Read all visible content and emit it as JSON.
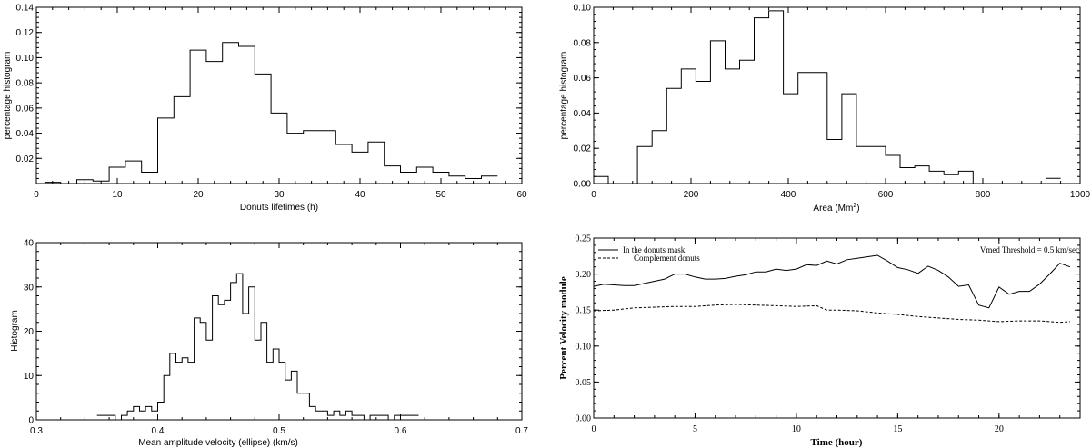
{
  "chart_data": [
    {
      "id": "lifetimes",
      "type": "histogram",
      "title": "",
      "xlabel": "Donuts lifetimes (h)",
      "ylabel": "percentage histogram",
      "xlim": [
        0,
        60
      ],
      "ylim": [
        0,
        0.14
      ],
      "xticks": [
        "0",
        "10",
        "20",
        "30",
        "40",
        "50",
        "60"
      ],
      "yticks": [
        "0.02",
        "0.04",
        "0.06",
        "0.08",
        "0.10",
        "0.12",
        "0.14"
      ],
      "bin_width": 2,
      "bins_start": 1,
      "values": [
        0.001,
        0.0,
        0.003,
        0.002,
        0.013,
        0.018,
        0.009,
        0.052,
        0.069,
        0.106,
        0.097,
        0.112,
        0.109,
        0.087,
        0.056,
        0.04,
        0.042,
        0.042,
        0.031,
        0.025,
        0.033,
        0.014,
        0.009,
        0.013,
        0.009,
        0.006,
        0.004,
        0.006
      ]
    },
    {
      "id": "area",
      "type": "histogram",
      "title": "",
      "xlabel": "Area (Mm",
      "xlabel_sup": "2",
      "xlabel_end": ")",
      "ylabel": "percentage histogram",
      "xlim": [
        0,
        1000
      ],
      "ylim": [
        0,
        0.1
      ],
      "xticks": [
        "0",
        "200",
        "400",
        "600",
        "800",
        "1000"
      ],
      "yticks": [
        "0.00",
        "0.02",
        "0.04",
        "0.06",
        "0.08",
        "0.10"
      ],
      "bin_width": 30,
      "bins_start": 0,
      "values": [
        0.004,
        0.0,
        0.0,
        0.021,
        0.03,
        0.054,
        0.065,
        0.058,
        0.081,
        0.065,
        0.07,
        0.094,
        0.098,
        0.051,
        0.063,
        0.063,
        0.025,
        0.051,
        0.021,
        0.021,
        0.016,
        0.009,
        0.01,
        0.007,
        0.005,
        0.007,
        0.0,
        0.0,
        0.0,
        0.0,
        0.0,
        0.003
      ]
    },
    {
      "id": "velocity",
      "type": "histogram",
      "title": "",
      "xlabel": "Mean amplitude velocity  (ellipse) (km/s)",
      "ylabel": "Histogram",
      "xlim": [
        0.3,
        0.7
      ],
      "ylim": [
        0,
        40
      ],
      "xticks": [
        "0.3",
        "0.4",
        "0.5",
        "0.6",
        "0.7"
      ],
      "yticks": [
        "0",
        "10",
        "20",
        "30",
        "40"
      ],
      "bin_width": 0.005,
      "bins_start": 0.35,
      "values": [
        1,
        1,
        1,
        0,
        1,
        2,
        3,
        2,
        3,
        2,
        4,
        10,
        15,
        13,
        14,
        13,
        23,
        22,
        18,
        28,
        26,
        27,
        31,
        33,
        24,
        30,
        18,
        22,
        13,
        16,
        13,
        9,
        11,
        6,
        6,
        3,
        2,
        2,
        1,
        2,
        1,
        2,
        1,
        1,
        0,
        1,
        1,
        1,
        0,
        1,
        1,
        1,
        1
      ]
    },
    {
      "id": "velocity-module",
      "type": "line",
      "title": "",
      "xlabel": "Time (hour)",
      "ylabel": "Percent Velocity module",
      "xlim": [
        0,
        24
      ],
      "ylim": [
        0,
        0.25
      ],
      "xticks": [
        "0",
        "5",
        "10",
        "15",
        "20"
      ],
      "yticks": [
        "0.00",
        "0.05",
        "0.10",
        "0.15",
        "0.20",
        "0.25"
      ],
      "annotation": "Vmed Threshold = 0.5 km/sec",
      "series": [
        {
          "name": "In the donuts mask",
          "x": [
            0,
            0.5,
            1,
            1.5,
            2,
            2.5,
            3,
            3.5,
            4,
            4.5,
            5,
            5.5,
            6,
            6.5,
            7,
            7.5,
            8,
            8.5,
            9,
            9.5,
            10,
            10.5,
            11,
            11.5,
            12,
            12.5,
            13,
            13.5,
            14,
            14.5,
            15,
            15.5,
            16,
            16.5,
            17,
            17.5,
            18,
            18.5,
            19,
            19.5,
            20,
            20.5,
            21,
            21.5,
            22,
            22.5,
            23,
            23.5
          ],
          "values": [
            0.183,
            0.186,
            0.185,
            0.184,
            0.184,
            0.187,
            0.19,
            0.193,
            0.2,
            0.2,
            0.196,
            0.193,
            0.193,
            0.194,
            0.197,
            0.199,
            0.203,
            0.203,
            0.207,
            0.205,
            0.207,
            0.213,
            0.212,
            0.218,
            0.214,
            0.22,
            0.222,
            0.224,
            0.226,
            0.218,
            0.209,
            0.206,
            0.201,
            0.211,
            0.205,
            0.196,
            0.183,
            0.185,
            0.157,
            0.153,
            0.182,
            0.172,
            0.176,
            0.176,
            0.186,
            0.2,
            0.215,
            0.21
          ]
        },
        {
          "name": "Complement donuts",
          "x": [
            0,
            1,
            2,
            3,
            4,
            5,
            6,
            7,
            8,
            9,
            10,
            11,
            11.5,
            12,
            13,
            14,
            15,
            16,
            17,
            18,
            19,
            20,
            21,
            22,
            23,
            23.5
          ],
          "values": [
            0.149,
            0.15,
            0.153,
            0.154,
            0.155,
            0.155,
            0.157,
            0.158,
            0.157,
            0.156,
            0.155,
            0.156,
            0.15,
            0.15,
            0.149,
            0.146,
            0.144,
            0.141,
            0.139,
            0.137,
            0.136,
            0.134,
            0.135,
            0.135,
            0.133,
            0.134
          ]
        }
      ]
    }
  ]
}
